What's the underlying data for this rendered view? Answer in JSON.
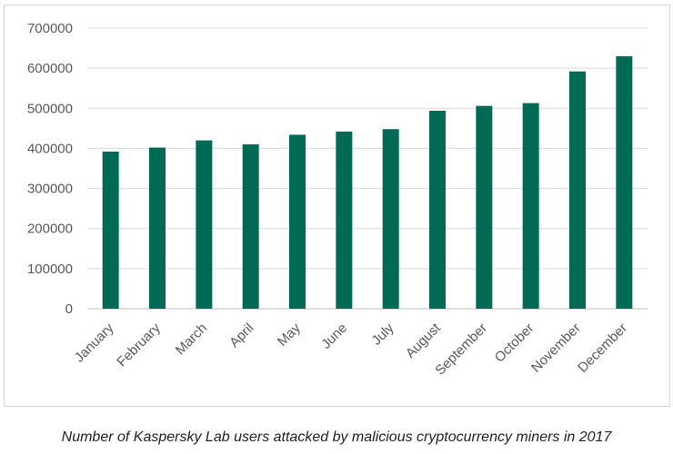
{
  "chart_data": {
    "type": "bar",
    "title": "",
    "xlabel": "",
    "ylabel": "",
    "categories": [
      "January",
      "February",
      "March",
      "April",
      "May",
      "June",
      "July",
      "August",
      "September",
      "October",
      "November",
      "December"
    ],
    "series": [
      {
        "name": "Users attacked",
        "values": [
          392000,
          402000,
          420000,
          410000,
          434000,
          442000,
          448000,
          494000,
          506000,
          513000,
          592000,
          630000
        ]
      }
    ],
    "yticks": [
      "0",
      "100000",
      "200000",
      "300000",
      "400000",
      "500000",
      "600000",
      "700000"
    ],
    "ylim": [
      0,
      700000
    ],
    "grid": true,
    "legend": "none",
    "colors": {
      "bar": "#006b54",
      "grid": "#d9d9d9",
      "axis": "#bfbfbf",
      "text": "#595959"
    }
  },
  "caption": "Number of Kaspersky Lab users attacked by malicious cryptocurrency miners in 2017"
}
